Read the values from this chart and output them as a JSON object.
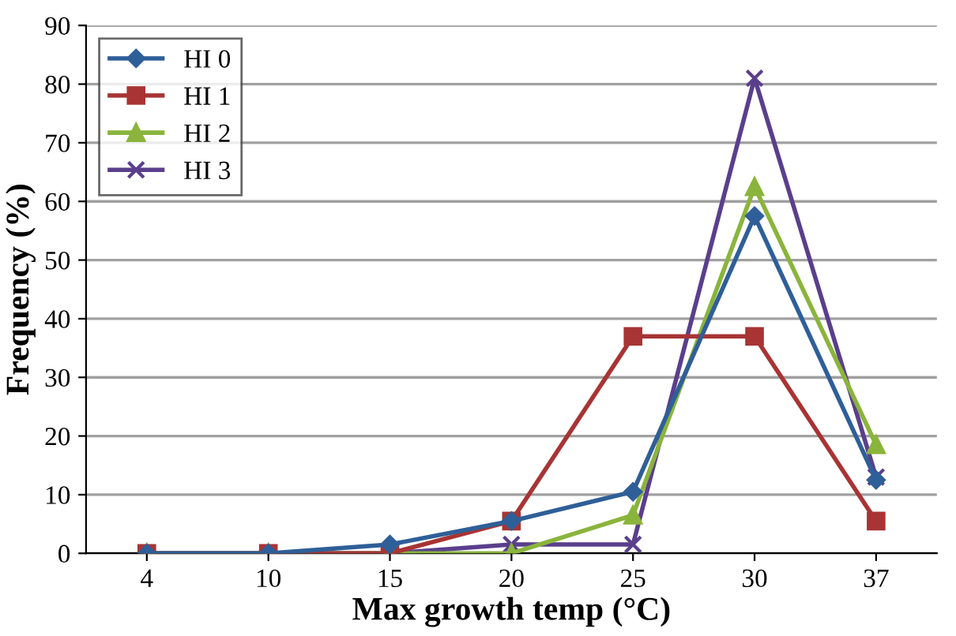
{
  "chart_data": {
    "type": "line",
    "xlabel": "Max growth temp (°C)",
    "ylabel": "Frequency (%)",
    "categories": [
      "4",
      "10",
      "15",
      "20",
      "25",
      "30",
      "37"
    ],
    "ylim": [
      0,
      90
    ],
    "yticks": [
      0,
      10,
      20,
      30,
      40,
      50,
      60,
      70,
      80,
      90
    ],
    "grid": "y",
    "legend": "top left",
    "series": [
      {
        "name": "HI 0",
        "color": "#2f5f98",
        "marker": "diamond",
        "values": [
          0,
          0,
          1.5,
          5.5,
          10.5,
          57.5,
          12.5
        ]
      },
      {
        "name": "HI 1",
        "color": "#a83434",
        "marker": "square",
        "values": [
          0,
          0,
          0,
          5.5,
          37,
          37,
          5.5
        ]
      },
      {
        "name": "HI 2",
        "color": "#8ab43c",
        "marker": "triangle",
        "values": [
          0,
          0,
          0,
          0,
          6.5,
          62.5,
          18.5
        ]
      },
      {
        "name": "HI 3",
        "color": "#5a3f8c",
        "marker": "cross",
        "values": [
          0,
          0,
          0,
          1.5,
          1.5,
          81,
          13
        ]
      }
    ]
  }
}
